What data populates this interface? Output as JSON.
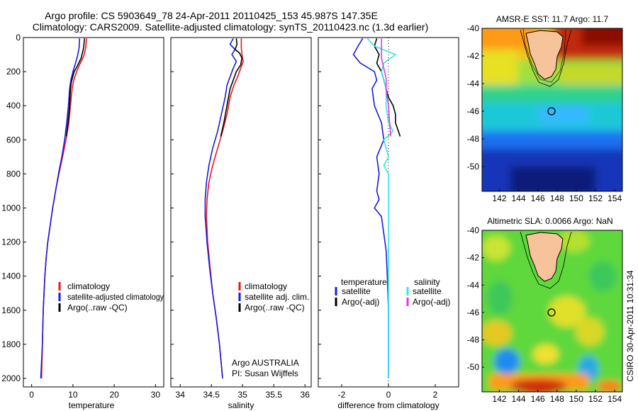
{
  "title_line1": "Argo profile: CS 5903649_78 24-Apr-2011 20110425_153 45.987S 147.35E",
  "title_line2": "Climatology: CARS2009. Satellite-adjusted climatology: synTS_20110423.nc (1.3d earlier)",
  "side_label": "CSIRO 30-Apr-2011 10:31:34",
  "colors": {
    "red": "#e8161a",
    "blue": "#1a1adf",
    "black": "#000000",
    "cyan": "#33e6e6",
    "magenta": "#e633e6"
  },
  "chart_data": [
    {
      "type": "line",
      "xlabel": "temperature",
      "xlim": [
        -2,
        32
      ],
      "ylim": [
        2050,
        0
      ],
      "xticks": [
        "0",
        "10",
        "20",
        "30"
      ],
      "xtick_values": [
        0,
        10,
        20,
        30
      ],
      "yticks": [
        "0",
        "200",
        "400",
        "600",
        "800",
        "1000",
        "1200",
        "1400",
        "1600",
        "1800",
        "2000"
      ],
      "legend": [
        "climatology",
        "satellite-adjusted climatology",
        "Argo(..raw -QC)"
      ],
      "series": [
        {
          "name": "climatology",
          "color": "red",
          "points": [
            [
              13.3,
              5
            ],
            [
              13.1,
              60
            ],
            [
              12.6,
              110
            ],
            [
              11.6,
              160
            ],
            [
              10.9,
              200
            ],
            [
              10.2,
              250
            ],
            [
              9.8,
              300
            ],
            [
              9.4,
              400
            ],
            [
              9.0,
              500
            ],
            [
              8.3,
              600
            ],
            [
              7.5,
              700
            ],
            [
              6.6,
              800
            ],
            [
              5.8,
              900
            ],
            [
              5.1,
              1000
            ],
            [
              4.5,
              1100
            ],
            [
              3.9,
              1200
            ],
            [
              3.5,
              1300
            ],
            [
              3.2,
              1400
            ],
            [
              3.0,
              1500
            ],
            [
              2.8,
              1600
            ],
            [
              2.6,
              1800
            ],
            [
              2.4,
              2000
            ]
          ]
        },
        {
          "name": "satellite-adjusted climatology",
          "color": "blue",
          "points": [
            [
              11.6,
              5
            ],
            [
              11.5,
              60
            ],
            [
              11.1,
              110
            ],
            [
              10.5,
              160
            ],
            [
              10.0,
              200
            ],
            [
              9.5,
              250
            ],
            [
              9.2,
              300
            ],
            [
              8.9,
              400
            ],
            [
              8.5,
              500
            ],
            [
              8.0,
              600
            ],
            [
              7.3,
              700
            ],
            [
              6.5,
              800
            ],
            [
              5.8,
              900
            ],
            [
              5.1,
              1000
            ],
            [
              4.5,
              1100
            ],
            [
              3.9,
              1200
            ],
            [
              3.5,
              1300
            ],
            [
              3.2,
              1400
            ],
            [
              3.0,
              1500
            ],
            [
              2.8,
              1600
            ],
            [
              2.6,
              1800
            ],
            [
              2.2,
              2000
            ]
          ]
        },
        {
          "name": "Argo(..raw -QC)",
          "color": "black",
          "points": [
            [
              12.8,
              5
            ],
            [
              12.6,
              60
            ],
            [
              12.0,
              120
            ],
            [
              11.0,
              170
            ],
            [
              10.3,
              200
            ],
            [
              9.6,
              260
            ],
            [
              9.4,
              300
            ],
            [
              9.2,
              400
            ],
            [
              8.8,
              500
            ],
            [
              8.4,
              580
            ]
          ]
        }
      ]
    },
    {
      "type": "line",
      "xlabel": "salinity",
      "xlim": [
        33.85,
        36.1
      ],
      "ylim": [
        2050,
        0
      ],
      "xticks": [
        "34",
        "34.5",
        "35",
        "35.5",
        "36"
      ],
      "xtick_values": [
        34,
        34.5,
        35,
        35.5,
        36
      ],
      "yticks": [],
      "legend": [
        "climatology",
        "satellite adj. clim.",
        "Argo(..raw -QC)"
      ],
      "annotation_line1": "Argo AUSTRALIA",
      "annotation_line2": "PI: Susan Wijffels",
      "series": [
        {
          "name": "climatology",
          "color": "red",
          "points": [
            [
              34.98,
              5
            ],
            [
              34.98,
              60
            ],
            [
              34.99,
              100
            ],
            [
              35.01,
              140
            ],
            [
              34.97,
              180
            ],
            [
              34.92,
              230
            ],
            [
              34.86,
              280
            ],
            [
              34.8,
              350
            ],
            [
              34.75,
              450
            ],
            [
              34.68,
              550
            ],
            [
              34.6,
              650
            ],
            [
              34.52,
              750
            ],
            [
              34.46,
              850
            ],
            [
              34.43,
              950
            ],
            [
              34.42,
              1050
            ],
            [
              34.44,
              1200
            ],
            [
              34.48,
              1350
            ],
            [
              34.52,
              1500
            ],
            [
              34.58,
              1650
            ],
            [
              34.63,
              1800
            ],
            [
              34.68,
              2000
            ]
          ]
        },
        {
          "name": "satellite adj. clim.",
          "color": "blue",
          "points": [
            [
              34.85,
              5
            ],
            [
              34.8,
              40
            ],
            [
              34.88,
              70
            ],
            [
              34.83,
              100
            ],
            [
              34.9,
              140
            ],
            [
              34.85,
              180
            ],
            [
              34.8,
              230
            ],
            [
              34.75,
              280
            ],
            [
              34.72,
              350
            ],
            [
              34.66,
              450
            ],
            [
              34.6,
              550
            ],
            [
              34.52,
              650
            ],
            [
              34.46,
              750
            ],
            [
              34.42,
              850
            ],
            [
              34.4,
              950
            ],
            [
              34.4,
              1050
            ],
            [
              34.43,
              1200
            ],
            [
              34.47,
              1350
            ],
            [
              34.52,
              1500
            ],
            [
              34.58,
              1650
            ],
            [
              34.63,
              1800
            ],
            [
              34.68,
              2000
            ]
          ]
        },
        {
          "name": "Argo(..raw -QC)",
          "color": "black",
          "points": [
            [
              34.9,
              5
            ],
            [
              34.91,
              40
            ],
            [
              34.88,
              70
            ],
            [
              34.95,
              90
            ],
            [
              34.99,
              120
            ],
            [
              34.97,
              160
            ],
            [
              34.9,
              200
            ],
            [
              34.85,
              250
            ],
            [
              34.8,
              300
            ],
            [
              34.75,
              400
            ],
            [
              34.7,
              500
            ],
            [
              34.65,
              580
            ]
          ]
        }
      ]
    },
    {
      "type": "line",
      "xlabel": "difference from climatology",
      "xlim": [
        -3,
        3
      ],
      "ylim": [
        2050,
        0
      ],
      "xticks": [
        "-2",
        "0",
        "2"
      ],
      "xtick_values": [
        -2,
        0,
        2
      ],
      "yticks": [],
      "legend_header_left": "temperature",
      "legend_header_right": "salinity",
      "legend_left": [
        "satellite",
        "Argo(-adj)"
      ],
      "legend_right": [
        "satellite",
        "Argo(-adj)"
      ],
      "series": [
        {
          "name": "temperature satellite",
          "color": "blue",
          "points": [
            [
              -1.1,
              5
            ],
            [
              -1.3,
              50
            ],
            [
              -1.5,
              100
            ],
            [
              -1.2,
              150
            ],
            [
              -0.6,
              200
            ],
            [
              -0.5,
              250
            ],
            [
              -0.7,
              300
            ],
            [
              -0.6,
              400
            ],
            [
              -0.3,
              500
            ],
            [
              -0.2,
              600
            ],
            [
              -0.5,
              700
            ],
            [
              -0.4,
              800
            ],
            [
              -0.5,
              900
            ],
            [
              -0.4,
              950
            ],
            [
              -0.6,
              1000
            ],
            [
              -0.3,
              1050
            ],
            [
              -0.2,
              1150
            ],
            [
              -0.1,
              1250
            ],
            [
              -0.05,
              1400
            ],
            [
              0,
              1600
            ],
            [
              0,
              1800
            ],
            [
              0,
              2000
            ]
          ]
        },
        {
          "name": "temperature Argo(-adj)",
          "color": "black",
          "points": [
            [
              -0.5,
              5
            ],
            [
              -0.6,
              50
            ],
            [
              -0.4,
              100
            ],
            [
              -0.5,
              150
            ],
            [
              -0.3,
              200
            ],
            [
              -0.2,
              250
            ],
            [
              -0.1,
              300
            ],
            [
              0.0,
              350
            ],
            [
              0.2,
              400
            ],
            [
              0.3,
              450
            ],
            [
              0.3,
              500
            ],
            [
              0.4,
              540
            ],
            [
              0.5,
              580
            ]
          ]
        },
        {
          "name": "salinity satellite",
          "color": "cyan",
          "points": [
            [
              -0.9,
              5
            ],
            [
              -0.6,
              50
            ],
            [
              0.3,
              100
            ],
            [
              -0.2,
              150
            ],
            [
              -0.3,
              200
            ],
            [
              -0.2,
              250
            ],
            [
              -0.1,
              300
            ],
            [
              -0.1,
              400
            ],
            [
              0.0,
              500
            ],
            [
              0.2,
              550
            ],
            [
              -0.2,
              600
            ],
            [
              0.0,
              700
            ],
            [
              -0.2,
              750
            ],
            [
              0.0,
              800
            ],
            [
              0.0,
              1000
            ],
            [
              0.0,
              1200
            ],
            [
              0.0,
              1500
            ],
            [
              0.0,
              1800
            ],
            [
              0.0,
              2000
            ]
          ]
        },
        {
          "name": "salinity Argo(-adj)",
          "color": "magenta",
          "points": [
            [
              -0.3,
              5
            ],
            [
              -0.3,
              60
            ],
            [
              -0.3,
              120
            ],
            [
              -0.2,
              180
            ],
            [
              -0.1,
              240
            ],
            [
              -0.1,
              300
            ],
            [
              0.0,
              400
            ],
            [
              0.05,
              500
            ],
            [
              0.1,
              580
            ]
          ]
        }
      ]
    },
    {
      "type": "heatmap",
      "title": "AMSR-E SST: 11.7 Argo: 11.7",
      "xlim": [
        140.2,
        154.8
      ],
      "ylim": [
        -51.8,
        -40
      ],
      "xticks": [
        "142",
        "144",
        "146",
        "148",
        "150",
        "152",
        "154"
      ],
      "xtick_values": [
        142,
        144,
        146,
        148,
        150,
        152,
        154
      ],
      "yticks": [
        "-40",
        "-42",
        "-44",
        "-46",
        "-48",
        "-50"
      ],
      "ytick_values": [
        -40,
        -42,
        -44,
        -46,
        -48,
        -50
      ],
      "marker": [
        147.35,
        -45.987
      ]
    },
    {
      "type": "heatmap",
      "title": "Altimetric SLA: 0.0066 Argo: NaN",
      "xlim": [
        140.2,
        154.8
      ],
      "ylim": [
        -51.8,
        -40
      ],
      "xticks": [
        "142",
        "144",
        "146",
        "148",
        "150",
        "152",
        "154"
      ],
      "xtick_values": [
        142,
        144,
        146,
        148,
        150,
        152,
        154
      ],
      "yticks": [
        "-40",
        "-42",
        "-44",
        "-46",
        "-48",
        "-50"
      ],
      "ytick_values": [
        -40,
        -42,
        -44,
        -46,
        -48,
        -50
      ],
      "marker": [
        147.35,
        -45.987
      ]
    }
  ]
}
